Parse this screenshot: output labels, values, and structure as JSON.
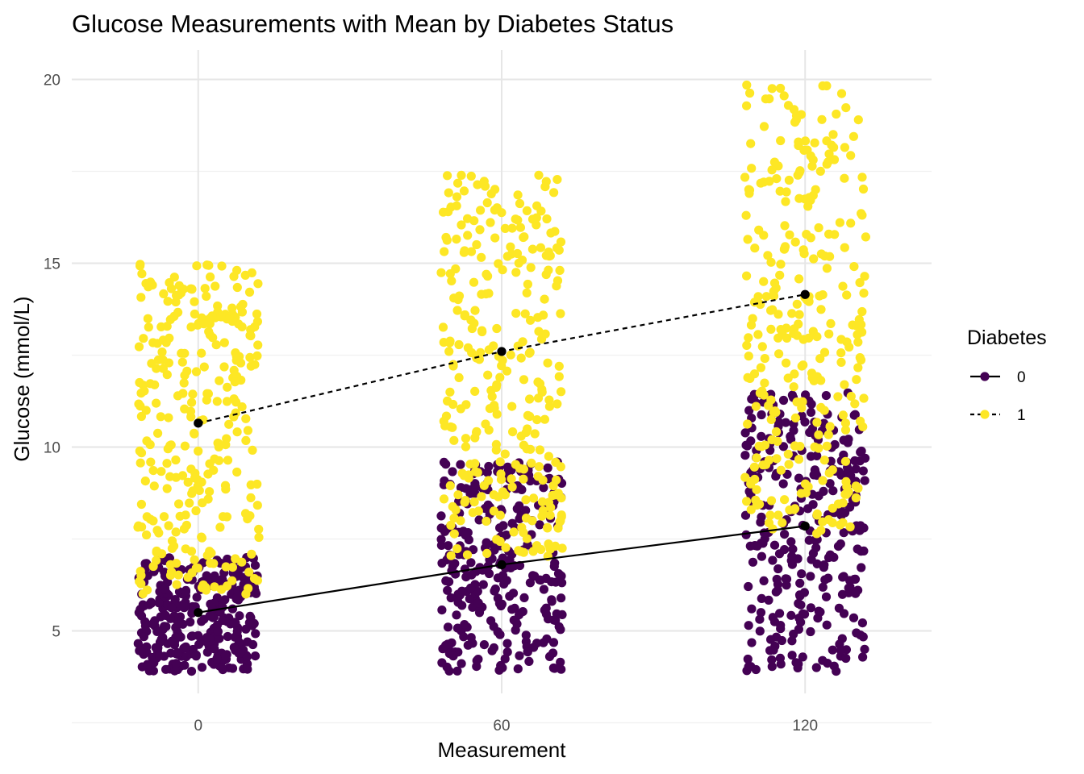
{
  "chart_data": {
    "type": "scatter",
    "title": "Glucose Measurements with Mean by Diabetes Status",
    "xlabel": "Measurement",
    "ylabel": "Glucose (mmol/L)",
    "x_categories": [
      0,
      60,
      120
    ],
    "x_tick_labels": [
      "0",
      "60",
      "120"
    ],
    "y_ticks": [
      5,
      10,
      15,
      20
    ],
    "y_tick_labels": [
      "5",
      "10",
      "15",
      "20"
    ],
    "xlim": [
      -25,
      145
    ],
    "ylim": [
      3.3,
      20.8
    ],
    "grid": true,
    "legend": {
      "title": "Diabetes",
      "position": "right",
      "entries": [
        {
          "label": "0",
          "linetype": "solid"
        },
        {
          "label": "1",
          "linetype": "dashed"
        }
      ]
    },
    "series": [
      {
        "name": "0",
        "color": "#440154",
        "ranges": [
          {
            "x": 0,
            "ymin": 3.9,
            "ymax": 7.0,
            "n": 300
          },
          {
            "x": 60,
            "ymin": 3.9,
            "ymax": 9.6,
            "n": 300
          },
          {
            "x": 120,
            "ymin": 3.9,
            "ymax": 11.5,
            "n": 300
          }
        ],
        "means": [
          {
            "x": 0,
            "y": 5.5
          },
          {
            "x": 60,
            "y": 6.8
          },
          {
            "x": 120,
            "y": 7.85
          }
        ]
      },
      {
        "name": "1",
        "color": "#FDE725",
        "ranges": [
          {
            "x": 0,
            "ymin": 6.0,
            "ymax": 15.0,
            "n": 300
          },
          {
            "x": 60,
            "ymin": 7.0,
            "ymax": 17.4,
            "n": 300
          },
          {
            "x": 120,
            "ymin": 7.5,
            "ymax": 20.0,
            "n": 300
          }
        ],
        "means": [
          {
            "x": 0,
            "y": 10.65
          },
          {
            "x": 60,
            "y": 12.6
          },
          {
            "x": 120,
            "y": 14.15
          }
        ]
      }
    ],
    "jitter_width": 12,
    "mean_color": "#000000"
  }
}
